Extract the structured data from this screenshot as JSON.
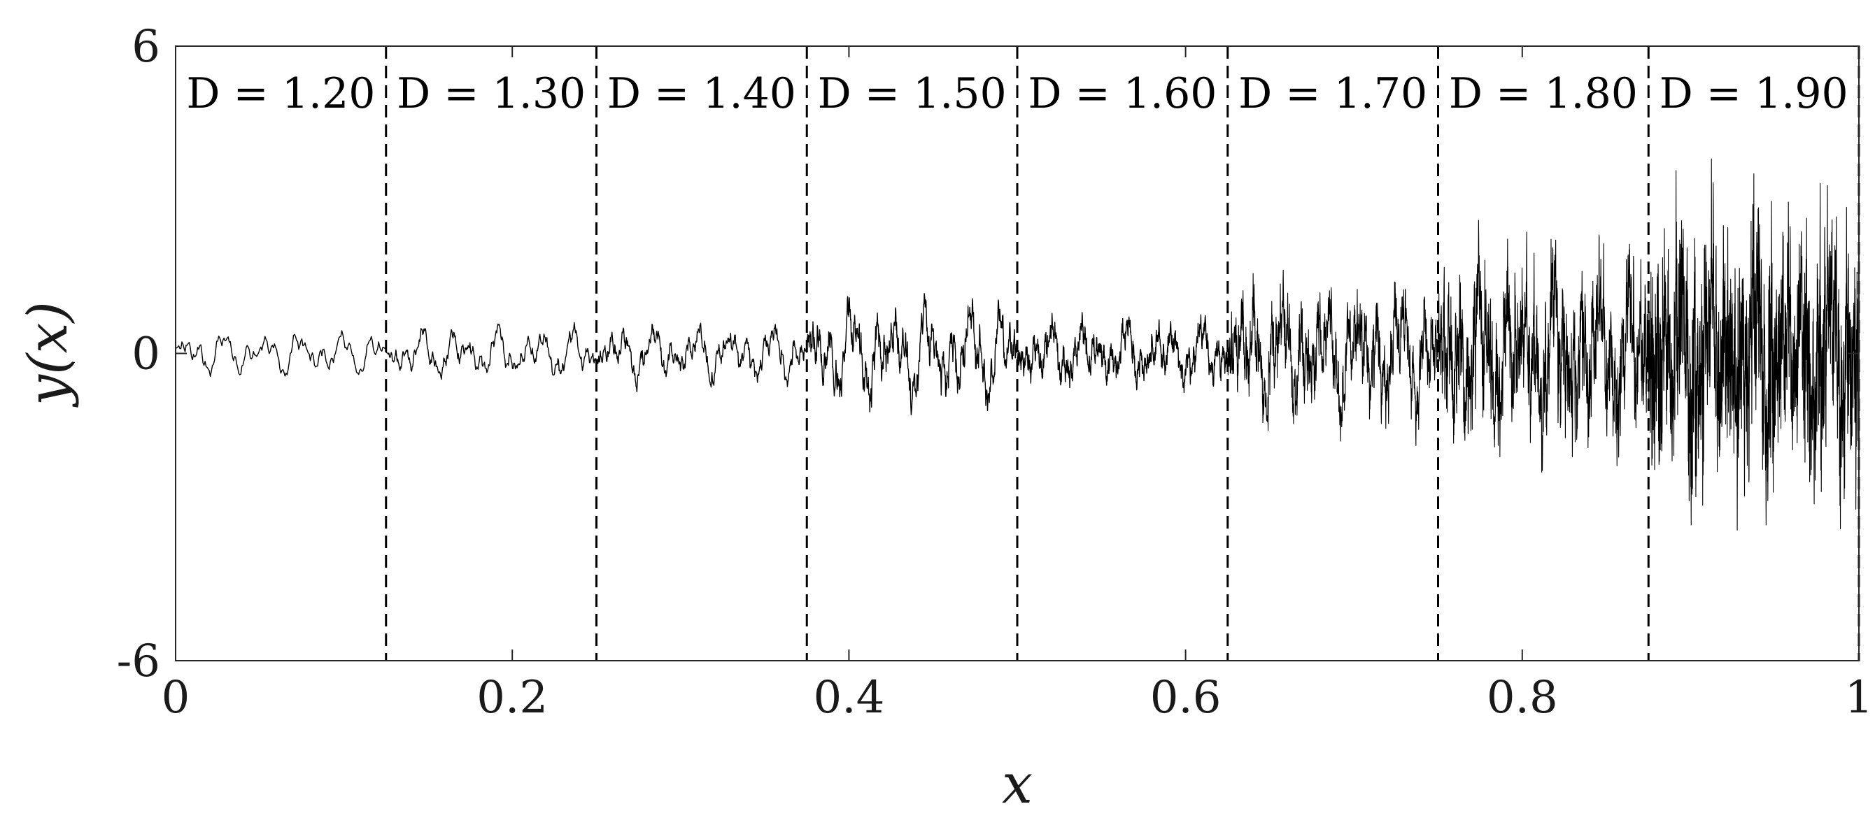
{
  "chart_data": {
    "type": "line",
    "title": "",
    "xlabel": "x",
    "ylabel": "y(x)",
    "xlim": [
      0,
      1
    ],
    "ylim": [
      -6,
      6
    ],
    "x_ticks": [
      0,
      0.2,
      0.4,
      0.6,
      0.8,
      1
    ],
    "x_tick_labels": [
      "0",
      "0.2",
      "0.4",
      "0.6",
      "0.8",
      "1"
    ],
    "y_ticks": [
      -6,
      0,
      6
    ],
    "y_tick_labels": [
      "-6",
      "0",
      "6"
    ],
    "grid": false,
    "line_color": "#000000",
    "separator_style": "dashed",
    "separators": [
      0.125,
      0.25,
      0.375,
      0.5,
      0.625,
      0.75,
      0.875,
      1.0
    ],
    "regions": [
      {
        "x_start": 0.0,
        "x_end": 0.125,
        "label": "D = 1.20",
        "D": 1.2,
        "approx_amplitude": 0.45
      },
      {
        "x_start": 0.125,
        "x_end": 0.25,
        "label": "D = 1.30",
        "D": 1.3,
        "approx_amplitude": 0.6
      },
      {
        "x_start": 0.25,
        "x_end": 0.375,
        "label": "D = 1.40",
        "D": 1.4,
        "approx_amplitude": 0.75
      },
      {
        "x_start": 0.375,
        "x_end": 0.5,
        "label": "D = 1.50",
        "D": 1.5,
        "approx_amplitude": 1.2
      },
      {
        "x_start": 0.5,
        "x_end": 0.625,
        "label": "D = 1.60",
        "D": 1.6,
        "approx_amplitude": 0.8
      },
      {
        "x_start": 0.625,
        "x_end": 0.75,
        "label": "D = 1.70",
        "D": 1.7,
        "approx_amplitude": 1.8
      },
      {
        "x_start": 0.75,
        "x_end": 0.875,
        "label": "D = 1.80",
        "D": 1.8,
        "approx_amplitude": 2.6
      },
      {
        "x_start": 0.875,
        "x_end": 1.0,
        "label": "D = 1.90",
        "D": 1.9,
        "approx_amplitude": 3.8
      }
    ]
  }
}
